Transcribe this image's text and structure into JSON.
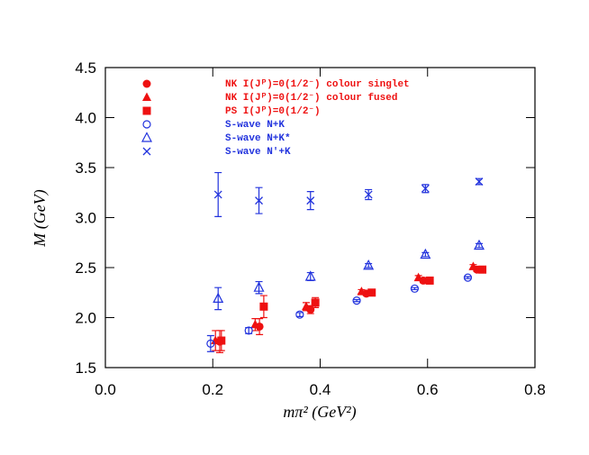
{
  "chart_data": {
    "type": "scatter",
    "x_label": "mπ² (GeV²)",
    "y_label": "M (GeV)",
    "xlim": [
      0,
      0.8
    ],
    "ylim": [
      1.5,
      4.5
    ],
    "xticks": [
      {
        "value": 0,
        "label": "0.0"
      },
      0.2,
      0.4,
      0.6,
      0.8
    ],
    "yticks": [
      1.5,
      {
        "value": 2,
        "label": "2.0"
      },
      2.5,
      {
        "value": 3,
        "label": "3.0"
      },
      3.5,
      {
        "value": 4,
        "label": "4.0"
      },
      4.5
    ],
    "legend": "upper left",
    "series": [
      {
        "name": "NK I(Jᴾ)=0(1/2⁻) colour singlet",
        "color": "#ee1111",
        "marker": "circle-filled",
        "x": [
          0.213,
          0.287,
          0.382,
          0.486,
          0.592,
          0.692
        ],
        "values": [
          1.76,
          1.91,
          2.08,
          2.24,
          2.37,
          2.48
        ],
        "errors": [
          0.11,
          0.08,
          0.04,
          0.02,
          0.02,
          0.02
        ]
      },
      {
        "name": "NK I(Jᴾ)=0(1/2⁻) colour fused",
        "color": "#ee1111",
        "marker": "triangle-filled",
        "x": [
          0.205,
          0.279,
          0.374,
          0.477,
          0.583,
          0.685
        ],
        "values": [
          1.77,
          1.93,
          2.11,
          2.26,
          2.4,
          2.51
        ],
        "errors": [
          0.1,
          0.06,
          0.04,
          0.02,
          0.02,
          0.02
        ]
      },
      {
        "name": "PS I(Jᴾ)=0(1/2⁻)",
        "color": "#ee1111",
        "marker": "square-filled",
        "x": [
          0.216,
          0.295,
          0.391,
          0.496,
          0.604,
          0.702
        ],
        "values": [
          1.77,
          2.11,
          2.15,
          2.25,
          2.37,
          2.48
        ],
        "errors": [
          0.1,
          0.11,
          0.05,
          0.03,
          0.02,
          0.02
        ]
      },
      {
        "name": "S-wave N+K",
        "color": "#2233dd",
        "marker": "circle-open",
        "x": [
          0.196,
          0.267,
          0.362,
          0.468,
          0.576,
          0.675
        ],
        "values": [
          1.74,
          1.87,
          2.03,
          2.17,
          2.29,
          2.4
        ],
        "errors": [
          0.08,
          0.03,
          0.02,
          0.01,
          0.01,
          0.01
        ]
      },
      {
        "name": "S-wave N+K*",
        "color": "#2233dd",
        "marker": "triangle-open",
        "x": [
          0.21,
          0.286,
          0.382,
          0.49,
          0.596,
          0.696
        ],
        "values": [
          2.19,
          2.3,
          2.41,
          2.52,
          2.63,
          2.72
        ],
        "errors": [
          0.11,
          0.06,
          0.04,
          0.02,
          0.02,
          0.02
        ]
      },
      {
        "name": "S-wave N'+K",
        "color": "#2233dd",
        "marker": "x",
        "x": [
          0.21,
          0.286,
          0.382,
          0.49,
          0.596,
          0.696
        ],
        "values": [
          3.23,
          3.17,
          3.17,
          3.23,
          3.29,
          3.36
        ],
        "errors": [
          0.22,
          0.13,
          0.09,
          0.05,
          0.04,
          0.03
        ]
      }
    ]
  }
}
